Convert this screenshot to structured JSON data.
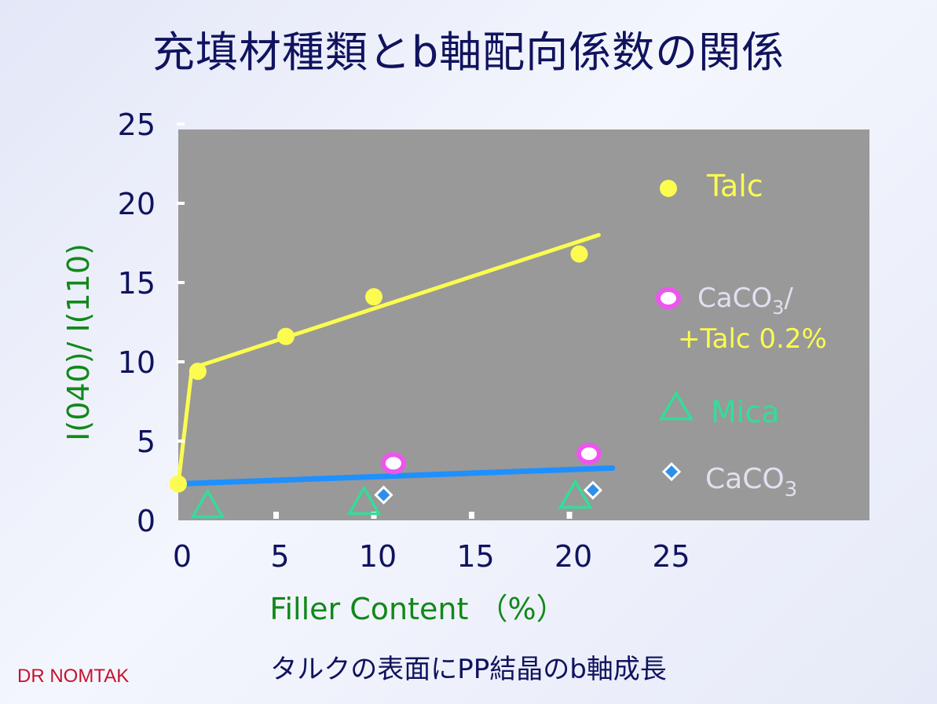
{
  "slide": {
    "title": "充填材種類とb軸配向係数の関係",
    "caption": "タルクの表面にPP結晶のb軸成長",
    "credit": "DR NOMTAK"
  },
  "colors": {
    "plot_background": "#999999",
    "talc": "#fcfc50",
    "caco3_talc": "#ee55ee",
    "mica": "#33dd99",
    "caco3": "#2f8fe8",
    "trend_blue": "#1e90ff",
    "axis_label_green": "#11881a",
    "dark_text": "#10135e"
  },
  "chart_data": {
    "type": "scatter",
    "xlabel": "Filler Content （%）",
    "ylabel": "I(040)/ I(110)",
    "xlim": [
      0,
      25
    ],
    "ylim": [
      0,
      25
    ],
    "x_ticks": [
      "0",
      "5",
      "10",
      "15",
      "20",
      "25"
    ],
    "y_ticks": [
      "0",
      "5",
      "10",
      "15",
      "20",
      "25"
    ],
    "grid": false,
    "legend_position": "right",
    "series": [
      {
        "name": "Talc",
        "marker": "circle",
        "color": "#fcfc50",
        "points": [
          [
            0,
            2.3
          ],
          [
            1,
            9.4
          ],
          [
            5.5,
            11.6
          ],
          [
            10,
            14.1
          ],
          [
            20.5,
            16.8
          ]
        ]
      },
      {
        "name_parts": [
          "CaCO",
          "3",
          "/",
          "+Talc 0.2%"
        ],
        "marker": "ring",
        "color": "#ee55ee",
        "points": [
          [
            11,
            3.6
          ],
          [
            21,
            4.2
          ]
        ]
      },
      {
        "name": "Mica",
        "marker": "triangle",
        "color": "#33dd99",
        "points": [
          [
            1.5,
            0.9
          ],
          [
            9.5,
            1.1
          ],
          [
            20.3,
            1.5
          ]
        ]
      },
      {
        "name_parts": [
          "CaCO",
          "3"
        ],
        "marker": "diamond",
        "color": "#2f8fe8",
        "points": [
          [
            10.5,
            1.6
          ],
          [
            21.2,
            1.9
          ]
        ]
      }
    ],
    "trend_lines": [
      {
        "color": "#fcfc50",
        "points": [
          [
            0,
            2.3
          ],
          [
            0.7,
            9.6
          ],
          [
            21.5,
            18
          ]
        ]
      },
      {
        "color": "#1e90ff",
        "points": [
          [
            0,
            2.3
          ],
          [
            22.2,
            3.3
          ]
        ]
      }
    ]
  }
}
